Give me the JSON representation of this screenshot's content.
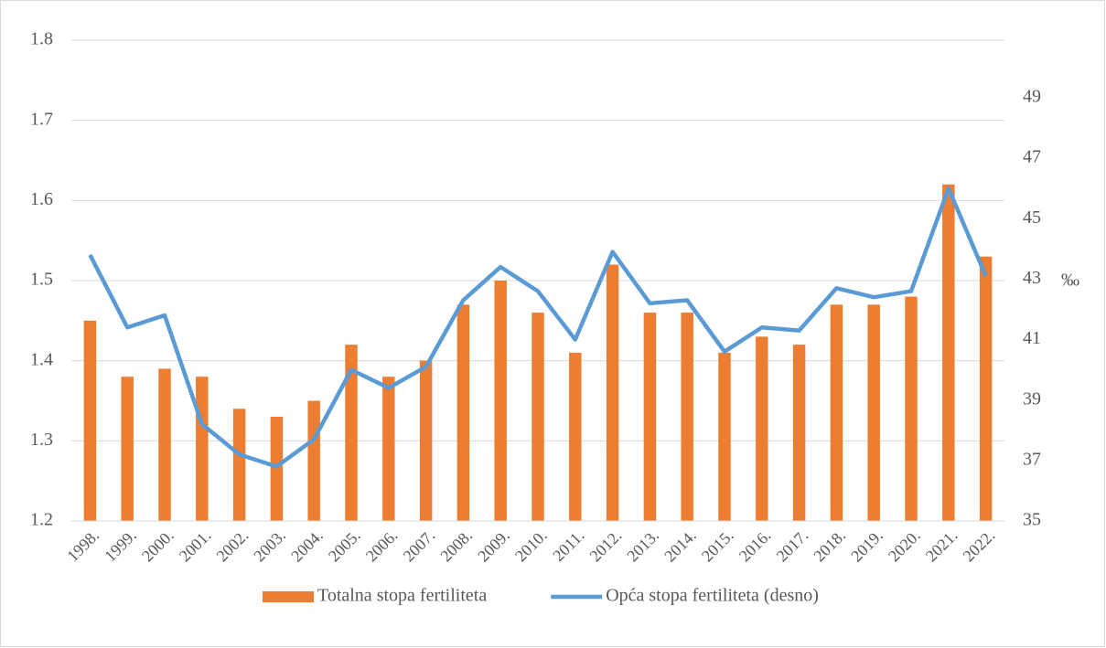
{
  "chart_data": {
    "type": "bar",
    "categories": [
      "1998.",
      "1999.",
      "2000.",
      "2001.",
      "2002.",
      "2003.",
      "2004.",
      "2005.",
      "2006.",
      "2007.",
      "2008.",
      "2009.",
      "2010.",
      "2011.",
      "2012.",
      "2013.",
      "2014.",
      "2015.",
      "2016.",
      "2017.",
      "2018.",
      "2019.",
      "2020.",
      "2021.",
      "2022."
    ],
    "series": [
      {
        "name": "Totalna stopa fertiliteta",
        "type": "bar",
        "color": "#ed7d31",
        "values": [
          1.45,
          1.38,
          1.39,
          1.38,
          1.34,
          1.33,
          1.35,
          1.42,
          1.38,
          1.4,
          1.47,
          1.5,
          1.46,
          1.41,
          1.52,
          1.46,
          1.46,
          1.41,
          1.43,
          1.42,
          1.47,
          1.47,
          1.48,
          1.62,
          1.53
        ]
      },
      {
        "name": "Opća stopa fertiliteta (desno)",
        "type": "line",
        "axis": "y2",
        "color": "#5b9bd5",
        "values": [
          43.8,
          41.4,
          41.8,
          38.2,
          37.2,
          36.8,
          37.7,
          40.0,
          39.4,
          40.1,
          42.3,
          43.4,
          42.6,
          41.0,
          43.9,
          42.2,
          42.3,
          40.6,
          41.4,
          41.3,
          42.7,
          42.4,
          42.6,
          46.0,
          43.1
        ]
      }
    ],
    "ylim": [
      1.2,
      1.8
    ],
    "yticks": [
      1.2,
      1.3,
      1.4,
      1.5,
      1.6,
      1.7,
      1.8
    ],
    "y2lim": [
      35,
      50.9
    ],
    "y2ticks": [
      35,
      37,
      39,
      41,
      43,
      45,
      47,
      49
    ],
    "y2label": "‰",
    "grid": true,
    "legend": "bottom"
  }
}
